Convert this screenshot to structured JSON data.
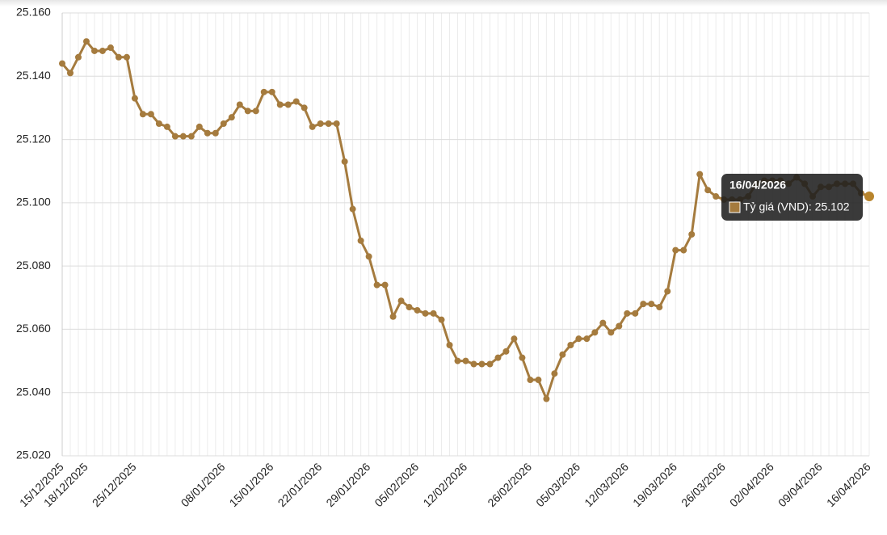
{
  "chart_data": {
    "type": "line",
    "categories": [
      "15/12/2025",
      null,
      null,
      "18/12/2025",
      null,
      null,
      null,
      null,
      null,
      "25/12/2025",
      null,
      null,
      null,
      null,
      null,
      null,
      null,
      null,
      null,
      null,
      "08/01/2026",
      null,
      null,
      null,
      null,
      null,
      "15/01/2026",
      null,
      null,
      null,
      null,
      null,
      "22/01/2026",
      null,
      null,
      null,
      null,
      null,
      "29/01/2026",
      null,
      null,
      null,
      null,
      null,
      "05/02/2026",
      null,
      null,
      null,
      null,
      null,
      "12/02/2026",
      null,
      null,
      null,
      null,
      null,
      null,
      null,
      "26/02/2026",
      null,
      null,
      null,
      null,
      null,
      "05/03/2026",
      null,
      null,
      null,
      null,
      null,
      "12/03/2026",
      null,
      null,
      null,
      null,
      null,
      "19/03/2026",
      null,
      null,
      null,
      null,
      null,
      "26/03/2026",
      null,
      null,
      null,
      null,
      null,
      "02/04/2026",
      null,
      null,
      null,
      null,
      null,
      "09/04/2026",
      null,
      null,
      null,
      null,
      null,
      "16/04/2026"
    ],
    "series": [
      {
        "name": "Tỷ giá (VND)",
        "color": "#a57b3e",
        "values": [
          25144,
          25141,
          25146,
          25151,
          25148,
          25148,
          25149,
          25146,
          25146,
          25133,
          25128,
          25128,
          25125,
          25124,
          25121,
          25121,
          25121,
          25124,
          25122,
          25122,
          25125,
          25127,
          25131,
          25129,
          25129,
          25135,
          25135,
          25131,
          25131,
          25132,
          25130,
          25124,
          25125,
          25125,
          25125,
          25113,
          25098,
          25088,
          25083,
          25074,
          25074,
          25064,
          25069,
          25067,
          25066,
          25065,
          25065,
          25063,
          25055,
          25050,
          25050,
          25049,
          25049,
          25049,
          25051,
          25053,
          25057,
          25051,
          25044,
          25044,
          25038,
          25046,
          25052,
          25055,
          25057,
          25057,
          25059,
          25062,
          25059,
          25061,
          25065,
          25065,
          25068,
          25068,
          25067,
          25072,
          25085,
          25085,
          25090,
          25109,
          25104,
          25102,
          25101,
          25101,
          25101,
          25102,
          25106,
          25107,
          25107,
          25107,
          25106,
          25108,
          25106,
          25102,
          25105,
          25105,
          25106,
          25106,
          25106,
          25103,
          25102
        ]
      }
    ],
    "ylim": [
      25020,
      25160
    ],
    "yticks": [
      {
        "value": 25020,
        "label": "25.020"
      },
      {
        "value": 25040,
        "label": "25.040"
      },
      {
        "value": 25060,
        "label": "25.060"
      },
      {
        "value": 25080,
        "label": "25.080"
      },
      {
        "value": 25100,
        "label": "25.100"
      },
      {
        "value": 25120,
        "label": "25.120"
      },
      {
        "value": 25140,
        "label": "25.140"
      },
      {
        "value": 25160,
        "label": "25.160"
      }
    ],
    "grid": true,
    "tooltip": {
      "title": "16/04/2026",
      "text": "Tỷ giá (VND): 25.102"
    }
  }
}
